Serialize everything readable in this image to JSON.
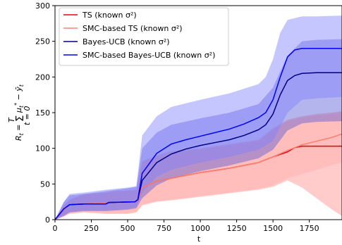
{
  "chart_data": {
    "type": "line",
    "title": "",
    "xlabel": "t",
    "ylabel": "R_t = Σ_{t=0}^{T} μ*_t − ȳ_t",
    "xlim": [
      0,
      1975
    ],
    "ylim": [
      0,
      300
    ],
    "x_ticks": [
      0,
      250,
      500,
      750,
      1000,
      1250,
      1500,
      1750
    ],
    "y_ticks": [
      0,
      50,
      100,
      150,
      200,
      250,
      300
    ],
    "grid": false,
    "legend_position": "top-left",
    "series": [
      {
        "name": "TS (known σ²)",
        "color": "#e8000b",
        "band_color": "#ff8c8c",
        "points": [
          [
            0,
            0
          ],
          [
            60,
            14
          ],
          [
            100,
            21
          ],
          [
            200,
            22
          ],
          [
            350,
            23
          ],
          [
            370,
            24
          ],
          [
            550,
            25
          ],
          [
            570,
            27
          ],
          [
            600,
            45
          ],
          [
            700,
            54
          ],
          [
            800,
            58
          ],
          [
            900,
            62
          ],
          [
            1000,
            66
          ],
          [
            1100,
            69
          ],
          [
            1200,
            72
          ],
          [
            1300,
            76
          ],
          [
            1400,
            80
          ],
          [
            1500,
            88
          ],
          [
            1600,
            95
          ],
          [
            1650,
            101
          ],
          [
            1700,
            103
          ],
          [
            1800,
            103
          ],
          [
            1975,
            103
          ]
        ],
        "lower": [
          [
            0,
            0
          ],
          [
            60,
            4
          ],
          [
            100,
            8
          ],
          [
            200,
            10
          ],
          [
            350,
            8
          ],
          [
            500,
            8
          ],
          [
            560,
            10
          ],
          [
            600,
            20
          ],
          [
            700,
            25
          ],
          [
            800,
            27
          ],
          [
            1000,
            32
          ],
          [
            1200,
            37
          ],
          [
            1400,
            42
          ],
          [
            1500,
            46
          ],
          [
            1600,
            55
          ],
          [
            1700,
            45
          ],
          [
            1800,
            30
          ],
          [
            1900,
            15
          ],
          [
            1975,
            5
          ]
        ],
        "upper": [
          [
            0,
            0
          ],
          [
            60,
            20
          ],
          [
            100,
            28
          ],
          [
            200,
            36
          ],
          [
            350,
            38
          ],
          [
            400,
            40
          ],
          [
            560,
            42
          ],
          [
            600,
            82
          ],
          [
            700,
            90
          ],
          [
            800,
            96
          ],
          [
            1000,
            100
          ],
          [
            1200,
            106
          ],
          [
            1400,
            112
          ],
          [
            1500,
            128
          ],
          [
            1600,
            140
          ],
          [
            1700,
            145
          ],
          [
            1800,
            148
          ],
          [
            1900,
            150
          ],
          [
            1975,
            152
          ]
        ]
      },
      {
        "name": "SMC-based TS (known σ²)",
        "color": "#fa8072",
        "band_color": "#ffb0a8",
        "points": [
          [
            0,
            0
          ],
          [
            60,
            14
          ],
          [
            100,
            21
          ],
          [
            200,
            22
          ],
          [
            350,
            23
          ],
          [
            370,
            24
          ],
          [
            550,
            25
          ],
          [
            570,
            27
          ],
          [
            600,
            45
          ],
          [
            700,
            54
          ],
          [
            800,
            58
          ],
          [
            900,
            62
          ],
          [
            1000,
            66
          ],
          [
            1100,
            69
          ],
          [
            1200,
            72
          ],
          [
            1300,
            76
          ],
          [
            1400,
            80
          ],
          [
            1500,
            88
          ],
          [
            1600,
            97
          ],
          [
            1700,
            105
          ],
          [
            1800,
            110
          ],
          [
            1900,
            115
          ],
          [
            1975,
            120
          ]
        ],
        "lower": [
          [
            0,
            0
          ],
          [
            60,
            5
          ],
          [
            100,
            9
          ],
          [
            200,
            11
          ],
          [
            350,
            9
          ],
          [
            500,
            9
          ],
          [
            560,
            11
          ],
          [
            600,
            21
          ],
          [
            700,
            26
          ],
          [
            800,
            28
          ],
          [
            1000,
            33
          ],
          [
            1200,
            38
          ],
          [
            1400,
            43
          ],
          [
            1500,
            48
          ],
          [
            1600,
            58
          ],
          [
            1700,
            64
          ],
          [
            1800,
            70
          ],
          [
            1900,
            76
          ],
          [
            1975,
            80
          ]
        ],
        "upper": [
          [
            0,
            0
          ],
          [
            60,
            20
          ],
          [
            100,
            28
          ],
          [
            200,
            35
          ],
          [
            350,
            37
          ],
          [
            400,
            39
          ],
          [
            560,
            41
          ],
          [
            600,
            80
          ],
          [
            700,
            88
          ],
          [
            800,
            94
          ],
          [
            1000,
            98
          ],
          [
            1200,
            104
          ],
          [
            1400,
            110
          ],
          [
            1500,
            126
          ],
          [
            1600,
            138
          ],
          [
            1700,
            143
          ],
          [
            1800,
            146
          ],
          [
            1900,
            148
          ],
          [
            1975,
            150
          ]
        ]
      },
      {
        "name": "Bayes-UCB (known σ²)",
        "color": "#000080",
        "band_color": "#5c5cd6",
        "points": [
          [
            0,
            0
          ],
          [
            60,
            15
          ],
          [
            100,
            21
          ],
          [
            200,
            22
          ],
          [
            350,
            22
          ],
          [
            370,
            24
          ],
          [
            550,
            25
          ],
          [
            570,
            28
          ],
          [
            600,
            55
          ],
          [
            700,
            80
          ],
          [
            800,
            92
          ],
          [
            900,
            99
          ],
          [
            1000,
            104
          ],
          [
            1100,
            108
          ],
          [
            1200,
            112
          ],
          [
            1300,
            118
          ],
          [
            1400,
            126
          ],
          [
            1450,
            133
          ],
          [
            1500,
            148
          ],
          [
            1550,
            175
          ],
          [
            1600,
            195
          ],
          [
            1650,
            202
          ],
          [
            1700,
            205
          ],
          [
            1800,
            206
          ],
          [
            1975,
            206
          ]
        ],
        "lower": [
          [
            0,
            0
          ],
          [
            60,
            5
          ],
          [
            100,
            10
          ],
          [
            200,
            12
          ],
          [
            350,
            12
          ],
          [
            500,
            14
          ],
          [
            560,
            16
          ],
          [
            600,
            30
          ],
          [
            700,
            48
          ],
          [
            800,
            58
          ],
          [
            1000,
            68
          ],
          [
            1200,
            76
          ],
          [
            1400,
            86
          ],
          [
            1500,
            98
          ],
          [
            1600,
            125
          ],
          [
            1700,
            135
          ],
          [
            1800,
            137
          ],
          [
            1975,
            138
          ]
        ],
        "upper": [
          [
            0,
            0
          ],
          [
            60,
            24
          ],
          [
            100,
            34
          ],
          [
            200,
            36
          ],
          [
            350,
            40
          ],
          [
            500,
            44
          ],
          [
            560,
            46
          ],
          [
            600,
            100
          ],
          [
            700,
            122
          ],
          [
            800,
            133
          ],
          [
            1000,
            142
          ],
          [
            1200,
            150
          ],
          [
            1400,
            162
          ],
          [
            1500,
            185
          ],
          [
            1600,
            230
          ],
          [
            1700,
            250
          ],
          [
            1800,
            252
          ],
          [
            1975,
            253
          ]
        ]
      },
      {
        "name": "SMC-based Bayes-UCB (known σ²)",
        "color": "#0000ff",
        "band_color": "#8080ff",
        "points": [
          [
            0,
            0
          ],
          [
            60,
            15
          ],
          [
            100,
            21
          ],
          [
            200,
            22
          ],
          [
            350,
            22
          ],
          [
            370,
            24
          ],
          [
            550,
            25
          ],
          [
            570,
            28
          ],
          [
            600,
            65
          ],
          [
            700,
            93
          ],
          [
            800,
            106
          ],
          [
            900,
            112
          ],
          [
            1000,
            117
          ],
          [
            1100,
            122
          ],
          [
            1200,
            127
          ],
          [
            1300,
            134
          ],
          [
            1400,
            143
          ],
          [
            1450,
            150
          ],
          [
            1500,
            168
          ],
          [
            1550,
            200
          ],
          [
            1600,
            228
          ],
          [
            1650,
            238
          ],
          [
            1700,
            240
          ],
          [
            1800,
            240
          ],
          [
            1975,
            240
          ]
        ],
        "lower": [
          [
            0,
            0
          ],
          [
            60,
            6
          ],
          [
            100,
            11
          ],
          [
            200,
            13
          ],
          [
            350,
            13
          ],
          [
            500,
            15
          ],
          [
            560,
            17
          ],
          [
            600,
            38
          ],
          [
            700,
            60
          ],
          [
            800,
            70
          ],
          [
            1000,
            80
          ],
          [
            1200,
            88
          ],
          [
            1400,
            98
          ],
          [
            1500,
            110
          ],
          [
            1600,
            150
          ],
          [
            1700,
            168
          ],
          [
            1800,
            170
          ],
          [
            1975,
            172
          ]
        ],
        "upper": [
          [
            0,
            0
          ],
          [
            60,
            25
          ],
          [
            100,
            36
          ],
          [
            200,
            38
          ],
          [
            350,
            42
          ],
          [
            500,
            45
          ],
          [
            560,
            47
          ],
          [
            600,
            118
          ],
          [
            700,
            145
          ],
          [
            800,
            158
          ],
          [
            1000,
            168
          ],
          [
            1200,
            177
          ],
          [
            1400,
            190
          ],
          [
            1450,
            200
          ],
          [
            1500,
            225
          ],
          [
            1550,
            262
          ],
          [
            1600,
            280
          ],
          [
            1700,
            285
          ],
          [
            1800,
            285
          ],
          [
            1975,
            286
          ]
        ]
      }
    ]
  }
}
